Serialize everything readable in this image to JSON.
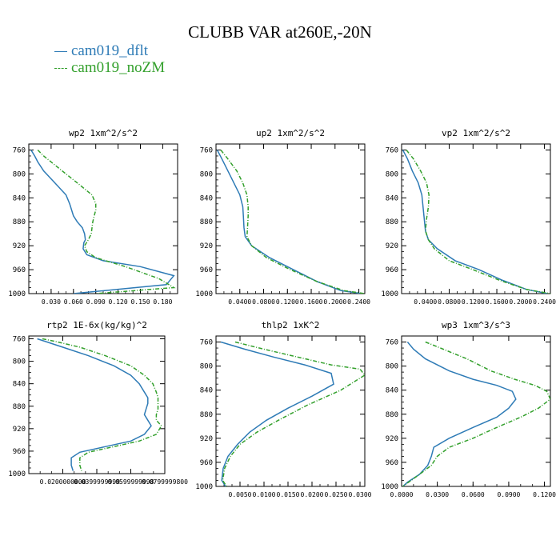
{
  "title": "CLUBB VAR at260E,-20N",
  "legend": [
    {
      "label": "cam019_dflt",
      "color": "#2e7bb6",
      "dash": false
    },
    {
      "label": "cam019_noZM",
      "color": "#33a02c",
      "dash": true
    }
  ],
  "chart_data": [
    {
      "type": "line",
      "title": "wp2   1xm^2/s^2",
      "ylim": [
        1000,
        750
      ],
      "yticks": [
        760,
        800,
        840,
        880,
        920,
        960,
        1000
      ],
      "xlim": [
        0.0,
        0.2
      ],
      "xticks": [
        0.03,
        0.06,
        0.09,
        0.12,
        0.15,
        0.18
      ],
      "xtick_labels": [
        "0.030",
        "0.060",
        "0.090",
        "0.120",
        "0.150",
        "0.180"
      ],
      "series": [
        {
          "name": "cam019_dflt",
          "x": [
            0.003,
            0.008,
            0.012,
            0.02,
            0.035,
            0.05,
            0.055,
            0.06,
            0.065,
            0.072,
            0.075,
            0.076,
            0.074,
            0.073,
            0.078,
            0.1,
            0.15,
            0.195,
            0.185,
            0.06
          ],
          "y": [
            760,
            770,
            780,
            795,
            815,
            835,
            850,
            870,
            880,
            890,
            900,
            910,
            915,
            925,
            935,
            945,
            955,
            970,
            985,
            1000
          ]
        },
        {
          "name": "cam019_noZM",
          "x": [
            0.012,
            0.02,
            0.03,
            0.045,
            0.065,
            0.085,
            0.09,
            0.09,
            0.088,
            0.086,
            0.085,
            0.084,
            0.08,
            0.075,
            0.078,
            0.09,
            0.13,
            0.175,
            0.195,
            0.09
          ],
          "y": [
            760,
            770,
            780,
            795,
            815,
            835,
            850,
            860,
            870,
            880,
            890,
            900,
            910,
            920,
            930,
            940,
            955,
            975,
            990,
            1000
          ]
        }
      ]
    },
    {
      "type": "line",
      "title": "up2   1xm^2/s^2",
      "ylim": [
        1000,
        750
      ],
      "yticks": [
        760,
        800,
        840,
        880,
        920,
        960,
        1000
      ],
      "xlim": [
        0.0,
        0.25
      ],
      "xticks": [
        0.04,
        0.08,
        0.12,
        0.16,
        0.2,
        0.24
      ],
      "xtick_labels": [
        "0.0400",
        "0.0800",
        "0.1200",
        "0.1600",
        "0.2000",
        "0.2400"
      ],
      "series": [
        {
          "name": "cam019_dflt",
          "x": [
            0.002,
            0.01,
            0.02,
            0.03,
            0.04,
            0.045,
            0.046,
            0.047,
            0.049,
            0.06,
            0.09,
            0.13,
            0.17,
            0.21,
            0.245
          ],
          "y": [
            760,
            775,
            795,
            815,
            835,
            855,
            870,
            890,
            905,
            920,
            940,
            960,
            980,
            995,
            1000
          ]
        },
        {
          "name": "cam019_noZM",
          "x": [
            0.008,
            0.02,
            0.035,
            0.045,
            0.052,
            0.054,
            0.054,
            0.053,
            0.052,
            0.06,
            0.085,
            0.125,
            0.17,
            0.215,
            0.25
          ],
          "y": [
            760,
            775,
            795,
            815,
            835,
            855,
            870,
            890,
            905,
            920,
            940,
            960,
            980,
            995,
            1000
          ]
        }
      ]
    },
    {
      "type": "line",
      "title": "vp2   1xm^2/s^2",
      "ylim": [
        1000,
        750
      ],
      "yticks": [
        760,
        800,
        840,
        880,
        920,
        960,
        1000
      ],
      "xlim": [
        0.0,
        0.25
      ],
      "xticks": [
        0.04,
        0.08,
        0.12,
        0.16,
        0.2,
        0.24
      ],
      "xtick_labels": [
        "0.0400",
        "0.0800",
        "0.1200",
        "0.1600",
        "0.2000",
        "0.2400"
      ],
      "series": [
        {
          "name": "cam019_dflt",
          "x": [
            0.002,
            0.01,
            0.018,
            0.028,
            0.034,
            0.036,
            0.038,
            0.04,
            0.045,
            0.06,
            0.09,
            0.13,
            0.17,
            0.21,
            0.245
          ],
          "y": [
            760,
            775,
            795,
            815,
            835,
            855,
            875,
            895,
            910,
            925,
            945,
            960,
            978,
            993,
            1000
          ]
        },
        {
          "name": "cam019_noZM",
          "x": [
            0.008,
            0.02,
            0.032,
            0.042,
            0.046,
            0.045,
            0.042,
            0.04,
            0.045,
            0.055,
            0.08,
            0.12,
            0.165,
            0.21,
            0.25
          ],
          "y": [
            760,
            775,
            795,
            815,
            835,
            855,
            875,
            895,
            910,
            925,
            945,
            960,
            978,
            993,
            1000
          ]
        }
      ]
    },
    {
      "type": "line",
      "title": "rtp2   1E-6x(kg/kg)^2",
      "ylim": [
        1000,
        755
      ],
      "yticks": [
        760,
        800,
        840,
        880,
        920,
        960,
        1000
      ],
      "xlim": [
        0.0,
        0.08
      ],
      "xticks": [
        0.02,
        0.04,
        0.06,
        0.08
      ],
      "xtick_labels": [
        "0.0200000000",
        "0.0399999999",
        "0.0599999998",
        "0.0799999800"
      ],
      "series": [
        {
          "name": "cam019_dflt",
          "x": [
            0.005,
            0.01,
            0.02,
            0.035,
            0.05,
            0.06,
            0.065,
            0.068,
            0.07,
            0.07,
            0.069,
            0.068,
            0.07,
            0.072,
            0.068,
            0.06,
            0.045,
            0.03,
            0.025,
            0.025,
            0.026
          ],
          "y": [
            760,
            765,
            775,
            790,
            808,
            825,
            840,
            855,
            865,
            875,
            885,
            895,
            905,
            915,
            930,
            942,
            952,
            962,
            972,
            985,
            995
          ]
        },
        {
          "name": "cam019_noZM",
          "x": [
            0.008,
            0.016,
            0.03,
            0.045,
            0.06,
            0.068,
            0.073,
            0.075,
            0.076,
            0.076,
            0.076,
            0.075,
            0.075,
            0.078,
            0.075,
            0.065,
            0.05,
            0.035,
            0.03,
            0.03,
            0.031
          ],
          "y": [
            760,
            765,
            775,
            790,
            808,
            825,
            840,
            855,
            865,
            875,
            885,
            895,
            905,
            915,
            930,
            942,
            952,
            962,
            972,
            985,
            995
          ]
        }
      ]
    },
    {
      "type": "line",
      "title": "thlp2   1xK^2",
      "ylim": [
        1000,
        750
      ],
      "yticks": [
        760,
        800,
        840,
        880,
        920,
        960,
        1000
      ],
      "xlim": [
        0.0,
        0.031
      ],
      "xticks": [
        0.005,
        0.01,
        0.015,
        0.02,
        0.025,
        0.03
      ],
      "xtick_labels": [
        "0.0050",
        "0.0100",
        "0.0150",
        "0.0200",
        "0.0250",
        "0.0300"
      ],
      "series": [
        {
          "name": "cam019_dflt",
          "x": [
            0.001,
            0.006,
            0.012,
            0.0185,
            0.024,
            0.0245,
            0.02,
            0.015,
            0.0105,
            0.007,
            0.0045,
            0.0025,
            0.0015,
            0.0012,
            0.002
          ],
          "y": [
            760,
            772,
            785,
            798,
            812,
            830,
            850,
            870,
            890,
            910,
            930,
            950,
            970,
            990,
            1000
          ]
        },
        {
          "name": "cam019_noZM",
          "x": [
            0.004,
            0.01,
            0.017,
            0.024,
            0.03,
            0.031,
            0.026,
            0.019,
            0.013,
            0.0085,
            0.005,
            0.003,
            0.0018,
            0.0014,
            0.0022
          ],
          "y": [
            760,
            772,
            785,
            798,
            805,
            815,
            840,
            865,
            890,
            910,
            930,
            950,
            970,
            990,
            1000
          ]
        }
      ]
    },
    {
      "type": "line",
      "title": "wp3   1xm^3/s^3",
      "ylim": [
        1000,
        750
      ],
      "yticks": [
        760,
        800,
        840,
        880,
        920,
        960,
        1000
      ],
      "xlim": [
        0.0,
        0.125
      ],
      "xticks": [
        0.0,
        0.03,
        0.06,
        0.09,
        0.12
      ],
      "xtick_labels": [
        "0.0000",
        "0.0300",
        "0.0600",
        "0.0900",
        "0.1200"
      ],
      "series": [
        {
          "name": "cam019_dflt",
          "x": [
            0.005,
            0.01,
            0.02,
            0.04,
            0.06,
            0.08,
            0.093,
            0.096,
            0.09,
            0.08,
            0.06,
            0.04,
            0.027,
            0.025,
            0.022,
            0.015,
            0.005,
            0.001
          ],
          "y": [
            760,
            772,
            788,
            808,
            822,
            832,
            842,
            855,
            870,
            885,
            902,
            920,
            935,
            950,
            965,
            980,
            993,
            1000
          ]
        },
        {
          "name": "cam019_noZM",
          "x": [
            0.02,
            0.035,
            0.055,
            0.075,
            0.095,
            0.112,
            0.122,
            0.125,
            0.115,
            0.1,
            0.08,
            0.06,
            0.04,
            0.03,
            0.025,
            0.015,
            0.006,
            0.001
          ],
          "y": [
            760,
            772,
            788,
            808,
            822,
            832,
            842,
            855,
            870,
            885,
            902,
            920,
            935,
            950,
            965,
            980,
            993,
            1000
          ]
        }
      ]
    }
  ]
}
